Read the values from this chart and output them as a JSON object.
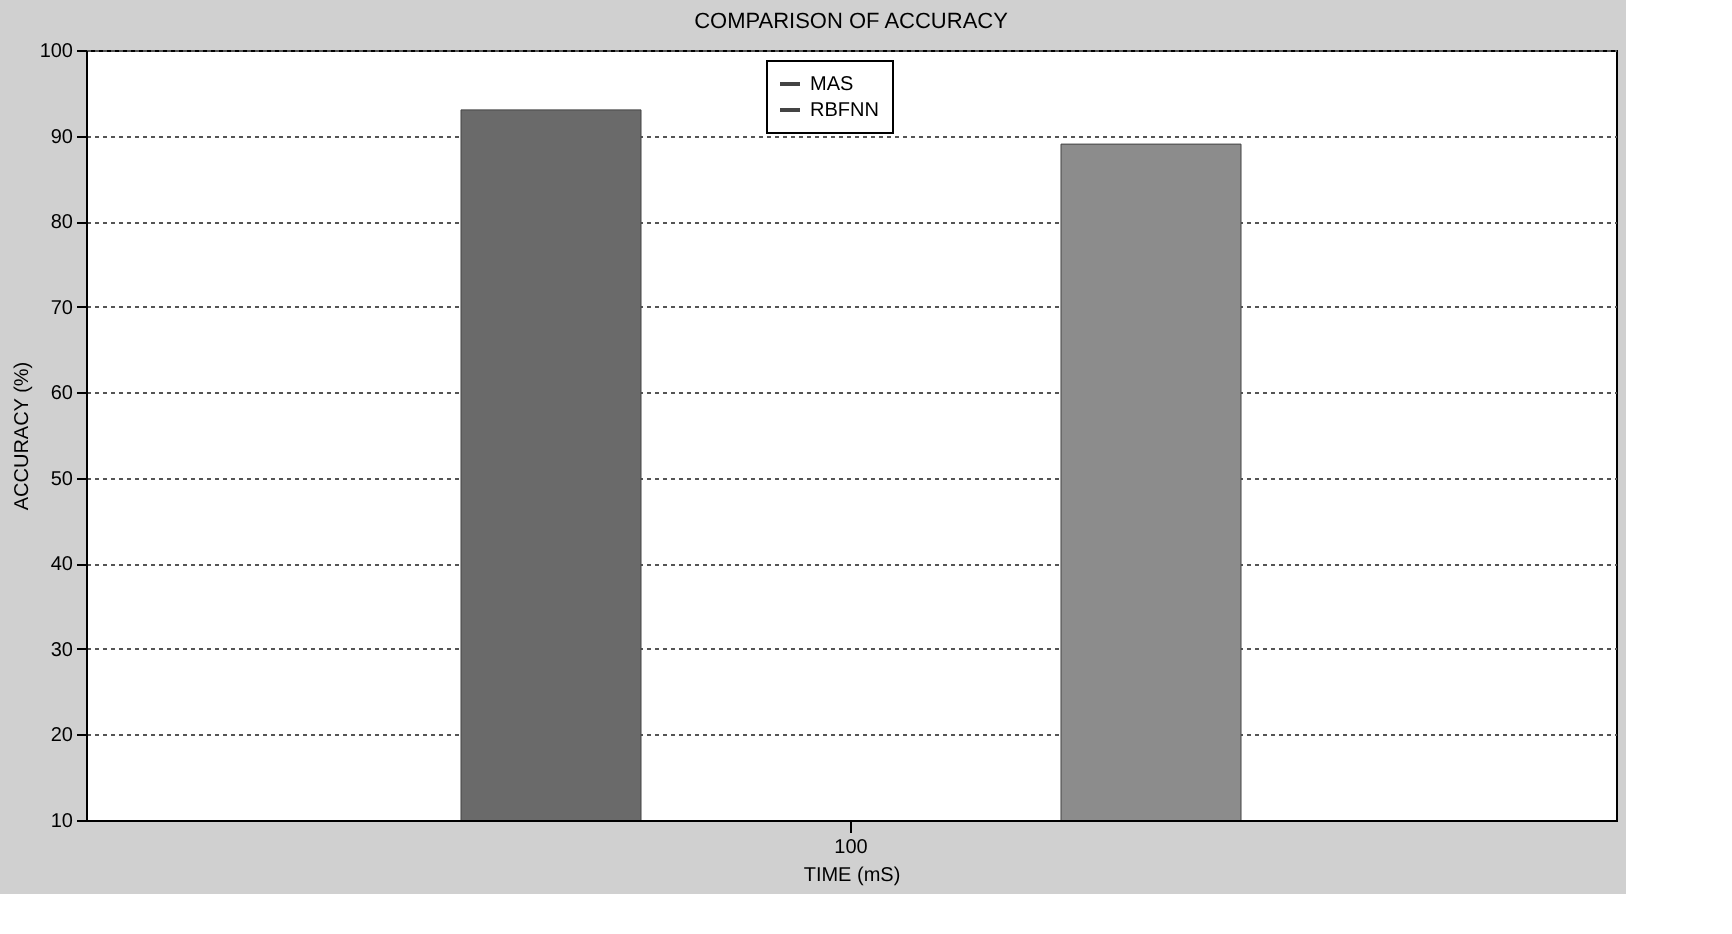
{
  "chart_data": {
    "type": "bar",
    "title": "COMPARISON OF ACCURACY",
    "xlabel": "TIME (mS)",
    "ylabel": "ACCURACY (%)",
    "categories": [
      "100"
    ],
    "series": [
      {
        "name": "MAS",
        "color": "#6a6a6a",
        "values": [
          93
        ]
      },
      {
        "name": "RBFNN",
        "color": "#8c8c8c",
        "values": [
          89
        ]
      }
    ],
    "ylim": [
      10,
      100
    ],
    "yticks": [
      10,
      20,
      30,
      40,
      50,
      60,
      70,
      80,
      90,
      100
    ],
    "grid": "y",
    "legend": "top"
  }
}
